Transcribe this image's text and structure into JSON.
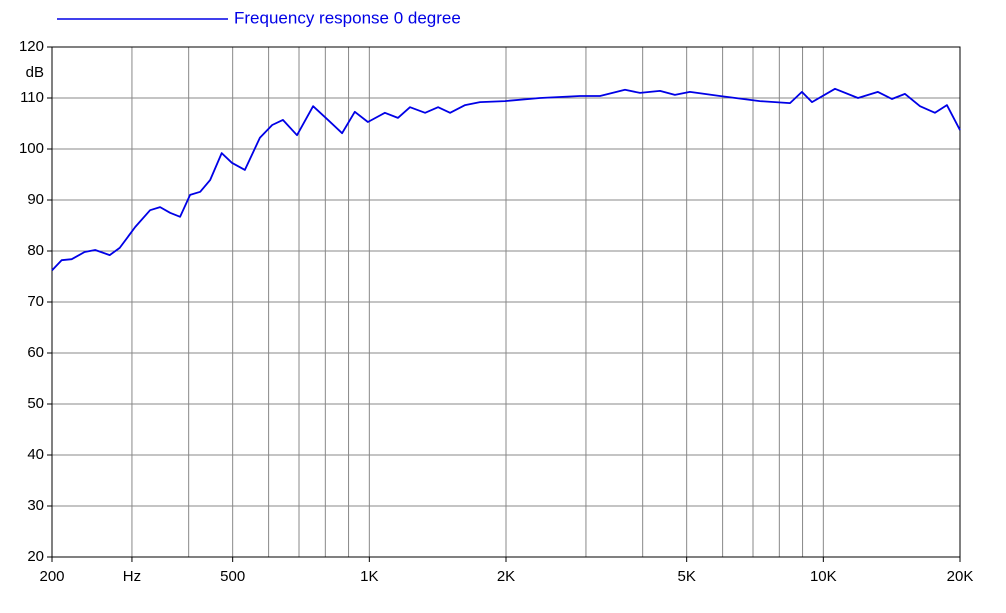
{
  "chart_data": {
    "type": "line",
    "legend": "Frequency response 0 degree",
    "ylabel": "dB",
    "x_scale": "log",
    "xlim": [
      200,
      20000
    ],
    "ylim": [
      20,
      120
    ],
    "xticks": [
      200,
      {
        "value": 300,
        "label": "Hz"
      },
      500,
      {
        "value": 1000,
        "label": "1K"
      },
      {
        "value": 2000,
        "label": "2K"
      },
      {
        "value": 5000,
        "label": "5K"
      },
      {
        "value": 10000,
        "label": "10K"
      },
      {
        "value": 20000,
        "label": "20K"
      }
    ],
    "x_minor_grid": [
      400,
      600,
      700,
      800,
      900,
      3000,
      4000,
      6000,
      7000,
      8000,
      9000
    ],
    "yticks": [
      20,
      30,
      40,
      50,
      60,
      70,
      80,
      90,
      100,
      110,
      120
    ],
    "grid": true,
    "series": [
      {
        "name": "Frequency response 0 degree",
        "color": "#0000e6",
        "x": [
          200,
          210,
          221,
          236,
          249,
          268,
          282,
          305,
          329,
          346,
          364,
          383,
          403,
          424,
          446,
          473,
          498,
          532,
          574,
          611,
          645,
          693,
          752,
          811,
          871,
          929,
          993,
          1082,
          1156,
          1229,
          1327,
          1417,
          1506,
          1625,
          1753,
          1990,
          2377,
          2911,
          3222,
          3657,
          3946,
          4368,
          4710,
          5084,
          5918,
          7245,
          8445,
          8970,
          9440,
          10612,
          11920,
          13190,
          14160,
          15130,
          16330,
          17620,
          18710,
          20000
        ],
        "values": [
          76.2,
          78.2,
          78.4,
          79.8,
          80.2,
          79.2,
          80.6,
          84.7,
          88.0,
          88.6,
          87.5,
          86.7,
          91.0,
          91.6,
          93.9,
          99.2,
          97.3,
          95.9,
          102.2,
          104.7,
          105.7,
          102.7,
          108.4,
          105.7,
          103.1,
          107.3,
          105.3,
          107.1,
          106.1,
          108.2,
          107.1,
          108.2,
          107.1,
          108.6,
          109.2,
          109.4,
          110.0,
          110.4,
          110.4,
          111.6,
          111.0,
          111.4,
          110.6,
          111.2,
          110.4,
          109.4,
          109.0,
          111.2,
          109.2,
          111.8,
          110.0,
          111.2,
          109.8,
          110.8,
          108.4,
          107.1,
          108.6,
          103.7
        ]
      }
    ]
  }
}
